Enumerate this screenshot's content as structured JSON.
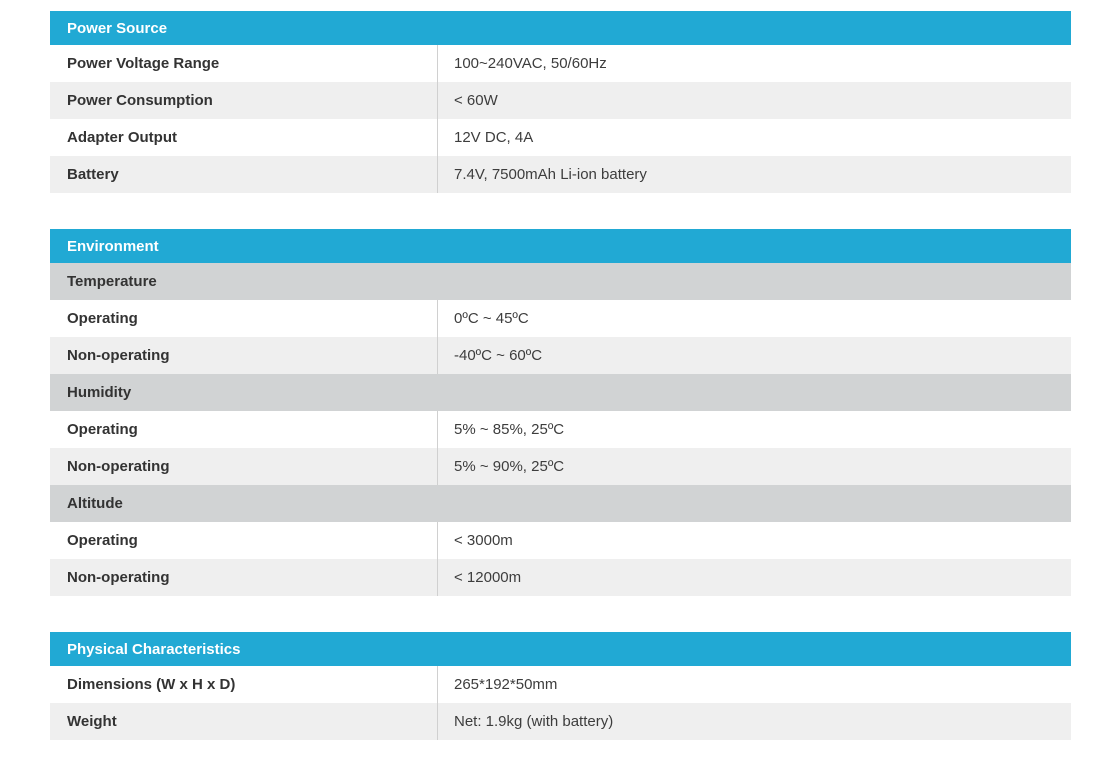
{
  "colors": {
    "section_header_bg": "#21a9d4",
    "section_header_text": "#ffffff",
    "subheader_bg": "#d1d3d4",
    "alt_row_bg": "#efefef",
    "divider": "#d0d0d0",
    "label_text": "#333333",
    "value_text": "#3d3d3d"
  },
  "tables": [
    {
      "title": "Power Source",
      "rows": [
        {
          "label": "Power Voltage Range",
          "value": "100~240VAC, 50/60Hz"
        },
        {
          "label": "Power Consumption",
          "value": "< 60W"
        },
        {
          "label": "Adapter Output",
          "value": "12V DC, 4A"
        },
        {
          "label": "Battery",
          "value": "7.4V, 7500mAh Li-ion battery"
        }
      ]
    },
    {
      "title": "Environment",
      "rows": [
        {
          "type": "subheader",
          "label": "Temperature"
        },
        {
          "label": "Operating",
          "value": "0ºC ~ 45ºC"
        },
        {
          "label": "Non-operating",
          "value": "-40ºC ~ 60ºC"
        },
        {
          "type": "subheader",
          "label": "Humidity"
        },
        {
          "label": "Operating",
          "value": "5% ~ 85%, 25ºC"
        },
        {
          "label": "Non-operating",
          "value": "5% ~ 90%, 25ºC"
        },
        {
          "type": "subheader",
          "label": "Altitude"
        },
        {
          "label": "Operating",
          "value": "< 3000m"
        },
        {
          "label": "Non-operating",
          "value": "< 12000m"
        }
      ]
    },
    {
      "title": "Physical Characteristics",
      "rows": [
        {
          "label": "Dimensions (W x H x D)",
          "value": "265*192*50mm"
        },
        {
          "label": "Weight",
          "value": "Net: 1.9kg (with battery)"
        }
      ]
    }
  ]
}
